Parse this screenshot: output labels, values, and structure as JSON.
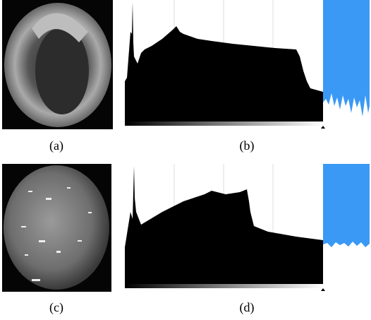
{
  "figure": {
    "panels": [
      {
        "label": "(a)"
      },
      {
        "label": "(b)"
      },
      {
        "label": "(c)"
      },
      {
        "label": "(d)"
      }
    ]
  }
}
